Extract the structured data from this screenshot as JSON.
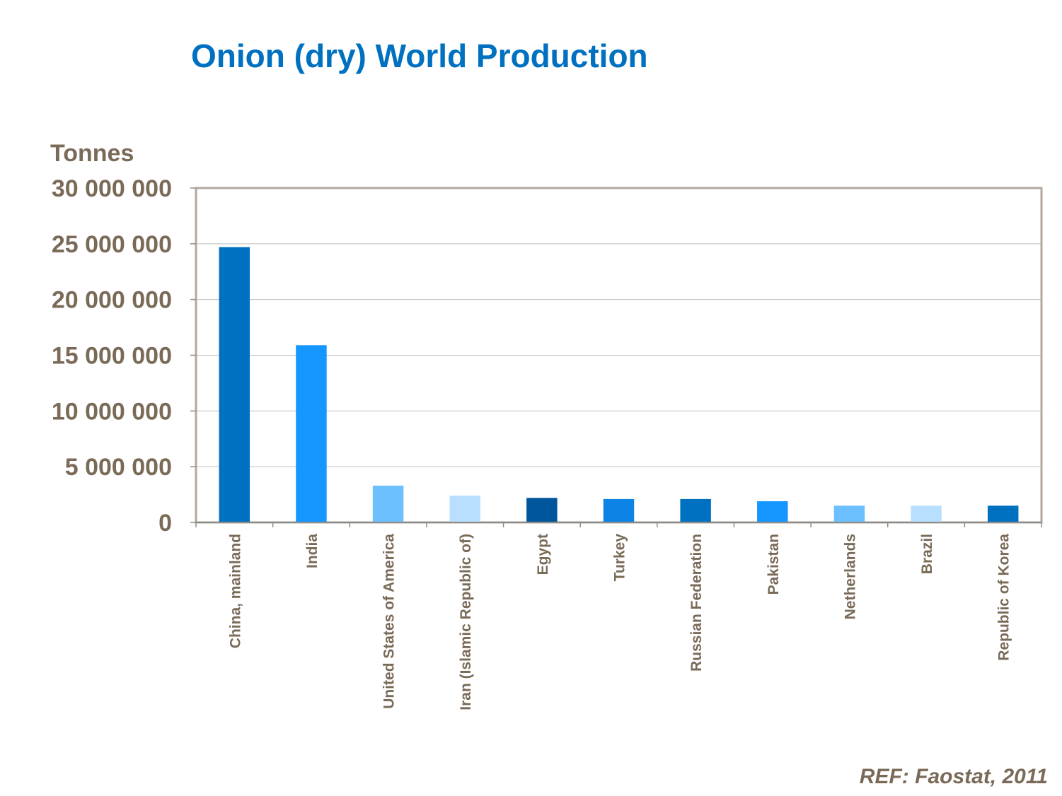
{
  "chart_data": {
    "type": "bar",
    "title": "Onion (dry) World Production",
    "ylabel": "Tonnes",
    "xlabel": "",
    "ylim": [
      0,
      30000000
    ],
    "yticks": [
      0,
      5000000,
      10000000,
      15000000,
      20000000,
      25000000,
      30000000
    ],
    "ytick_labels": [
      "0",
      "5 000 000",
      "10 000 000",
      "15 000 000",
      "20 000 000",
      "25 000 000",
      "30 000 000"
    ],
    "grid": true,
    "categories": [
      "China, mainland",
      "India",
      "United States of America",
      "Iran (Islamic Republic of)",
      "Egypt",
      "Turkey",
      "Russian Federation",
      "Pakistan",
      "Netherlands",
      "Brazil",
      "Republic of Korea"
    ],
    "values": [
      24700000,
      15900000,
      3300000,
      2400000,
      2200000,
      2100000,
      2100000,
      1900000,
      1500000,
      1500000,
      1500000
    ],
    "bar_colors": [
      "#0070c0",
      "#1697ff",
      "#6cc0ff",
      "#b8dfff",
      "#00569a",
      "#0b84e6",
      "#0070c0",
      "#1697ff",
      "#6cc0ff",
      "#b8dfff",
      "#0070c0"
    ],
    "source_note": "REF: Faostat, 2011"
  },
  "colors": {
    "title": "#0070c0",
    "text": "#7a6a58",
    "frame": "#b3a89c",
    "grid": "#bdbdbd",
    "axis": "#8c8c8c"
  }
}
